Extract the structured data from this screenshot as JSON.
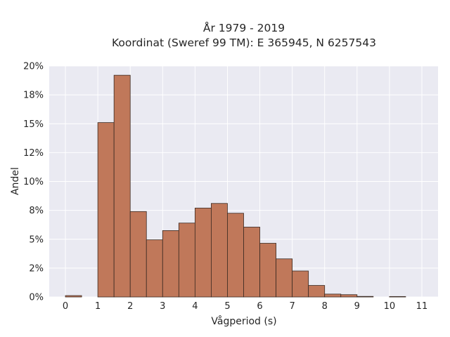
{
  "chart_data": {
    "type": "bar",
    "title_line1": "År 1979 - 2019",
    "title_line2": "Koordinat (Sweref 99 TM): E 365945, N 6257543",
    "xlabel": "Vågperiod (s)",
    "ylabel": "Andel",
    "bin_width": 0.5,
    "bins": [
      {
        "start": 0.0,
        "value": 0.12
      },
      {
        "start": 0.5,
        "value": 0.0
      },
      {
        "start": 1.0,
        "value": 15.1
      },
      {
        "start": 1.5,
        "value": 19.2
      },
      {
        "start": 2.0,
        "value": 7.4
      },
      {
        "start": 2.5,
        "value": 4.95
      },
      {
        "start": 3.0,
        "value": 5.75
      },
      {
        "start": 3.5,
        "value": 6.4
      },
      {
        "start": 4.0,
        "value": 7.7
      },
      {
        "start": 4.5,
        "value": 8.1
      },
      {
        "start": 5.0,
        "value": 7.25
      },
      {
        "start": 5.5,
        "value": 6.05
      },
      {
        "start": 6.0,
        "value": 4.65
      },
      {
        "start": 6.5,
        "value": 3.3
      },
      {
        "start": 7.0,
        "value": 2.25
      },
      {
        "start": 7.5,
        "value": 1.0
      },
      {
        "start": 8.0,
        "value": 0.25
      },
      {
        "start": 8.5,
        "value": 0.2
      },
      {
        "start": 9.0,
        "value": 0.05
      },
      {
        "start": 9.5,
        "value": 0.0
      },
      {
        "start": 10.0,
        "value": 0.04
      },
      {
        "start": 10.5,
        "value": 0.0
      }
    ],
    "xlim": [
      -0.5,
      11.5
    ],
    "ylim": [
      0,
      20
    ],
    "x_ticks": [
      {
        "v": 0,
        "label": "0"
      },
      {
        "v": 1,
        "label": "1"
      },
      {
        "v": 2,
        "label": "2"
      },
      {
        "v": 3,
        "label": "3"
      },
      {
        "v": 4,
        "label": "4"
      },
      {
        "v": 5,
        "label": "5"
      },
      {
        "v": 6,
        "label": "6"
      },
      {
        "v": 7,
        "label": "7"
      },
      {
        "v": 8,
        "label": "8"
      },
      {
        "v": 9,
        "label": "9"
      },
      {
        "v": 10,
        "label": "10"
      },
      {
        "v": 11,
        "label": "11"
      }
    ],
    "y_ticks": [
      {
        "v": 0,
        "label": "0%"
      },
      {
        "v": 2.5,
        "label": "2%"
      },
      {
        "v": 5,
        "label": "5%"
      },
      {
        "v": 7.5,
        "label": "8%"
      },
      {
        "v": 10,
        "label": "10%"
      },
      {
        "v": 12.5,
        "label": "12%"
      },
      {
        "v": 15,
        "label": "15%"
      },
      {
        "v": 17.5,
        "label": "18%"
      },
      {
        "v": 20,
        "label": "20%"
      }
    ],
    "grid": true,
    "colors": {
      "plot_bg": "#eaeaf2",
      "grid": "#ffffff",
      "bar_fill": "#c0785a",
      "bar_stroke": "#3a2a22"
    }
  }
}
